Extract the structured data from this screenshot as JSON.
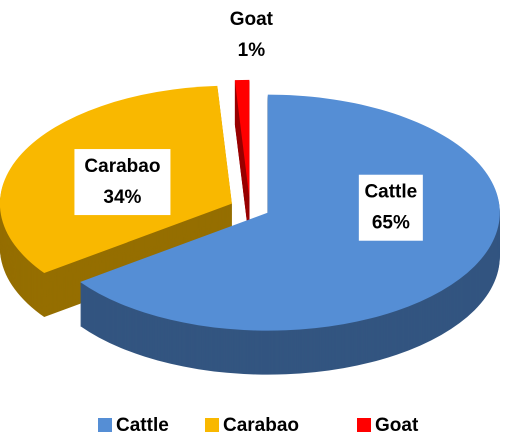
{
  "chart_data": {
    "type": "pie",
    "categories": [
      "Cattle",
      "Carabao",
      "Goat"
    ],
    "values": [
      65,
      34,
      1
    ],
    "value_labels": [
      "65%",
      "34%",
      "1%"
    ],
    "colors": [
      "#558ed5",
      "#f9b800",
      "#ff0000"
    ],
    "legend": "bottom"
  }
}
